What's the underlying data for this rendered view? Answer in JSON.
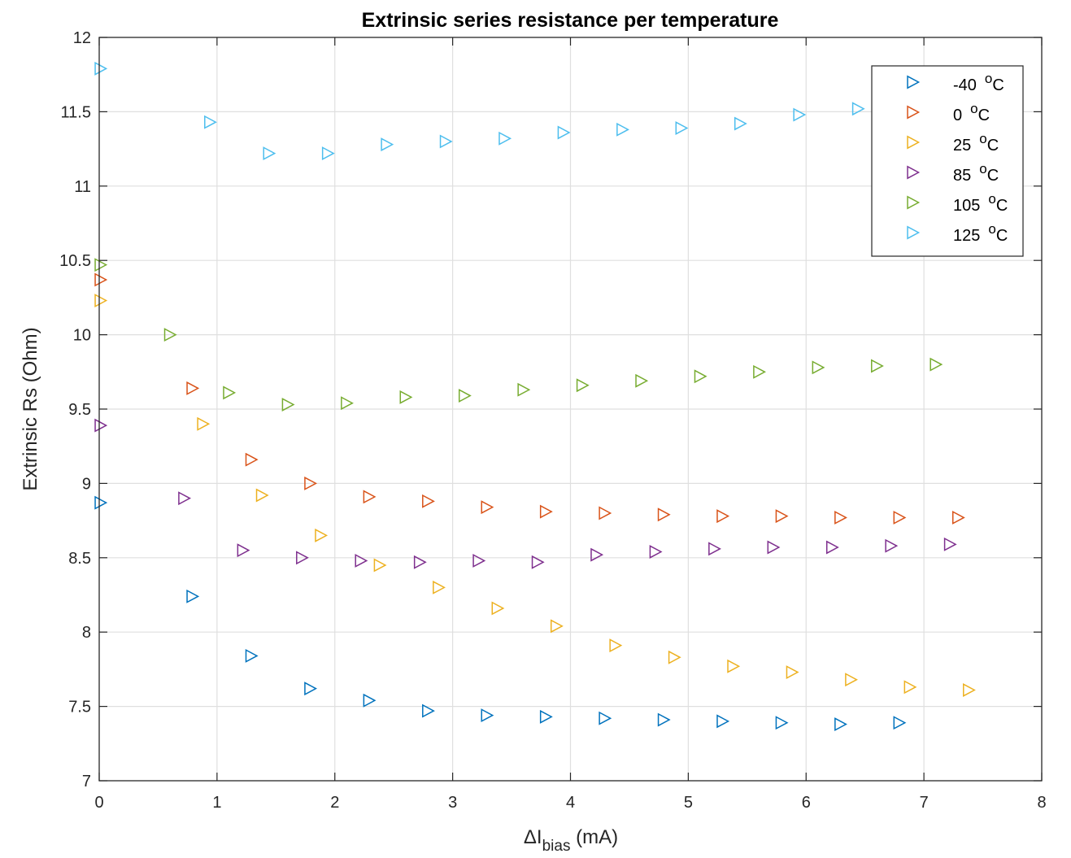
{
  "chart_data": {
    "type": "scatter",
    "title": "Extrinsic series resistance per temperature",
    "xlabel": {
      "prefix": "ΔI",
      "subscript": "bias",
      "suffix": " (mA)"
    },
    "ylabel": "Extrinsic Rs (Ohm)",
    "xlim": [
      0,
      8
    ],
    "ylim": [
      7,
      12
    ],
    "xticks": [
      "0",
      "1",
      "2",
      "3",
      "4",
      "5",
      "6",
      "7",
      "8"
    ],
    "yticks": [
      "7",
      "7.5",
      "8",
      "8.5",
      "9",
      "9.5",
      "10",
      "10.5",
      "11",
      "11.5",
      "12"
    ],
    "grid": true,
    "legend_position": "top-right",
    "marker": "triangle-right",
    "series": [
      {
        "name": "-40",
        "unit": "C",
        "color": "#0072BD",
        "x": [
          0,
          0.78,
          1.28,
          1.78,
          2.28,
          2.78,
          3.28,
          3.78,
          4.28,
          4.78,
          5.28,
          5.78,
          6.28,
          6.78
        ],
        "y": [
          8.87,
          8.24,
          7.84,
          7.62,
          7.54,
          7.47,
          7.44,
          7.43,
          7.42,
          7.41,
          7.4,
          7.39,
          7.38,
          7.39
        ]
      },
      {
        "name": "0",
        "unit": "C",
        "color": "#D95319",
        "x": [
          0,
          0.78,
          1.28,
          1.78,
          2.28,
          2.78,
          3.28,
          3.78,
          4.28,
          4.78,
          5.28,
          5.78,
          6.28,
          6.78,
          7.28
        ],
        "y": [
          10.37,
          9.64,
          9.16,
          9.0,
          8.91,
          8.88,
          8.84,
          8.81,
          8.8,
          8.79,
          8.78,
          8.78,
          8.77,
          8.77,
          8.77
        ]
      },
      {
        "name": "25",
        "unit": "C",
        "color": "#EDB120",
        "x": [
          0,
          0.87,
          1.37,
          1.87,
          2.37,
          2.87,
          3.37,
          3.87,
          4.37,
          4.87,
          5.37,
          5.87,
          6.37,
          6.87,
          7.37
        ],
        "y": [
          10.23,
          9.4,
          8.92,
          8.65,
          8.45,
          8.3,
          8.16,
          8.04,
          7.91,
          7.83,
          7.77,
          7.73,
          7.68,
          7.63,
          7.61
        ]
      },
      {
        "name": "85",
        "unit": "C",
        "color": "#7E2F8E",
        "x": [
          0,
          0.71,
          1.21,
          1.71,
          2.21,
          2.71,
          3.21,
          3.71,
          4.21,
          4.71,
          5.21,
          5.71,
          6.21,
          6.71,
          7.21
        ],
        "y": [
          9.39,
          8.9,
          8.55,
          8.5,
          8.48,
          8.47,
          8.48,
          8.47,
          8.52,
          8.54,
          8.56,
          8.57,
          8.57,
          8.58,
          8.59
        ]
      },
      {
        "name": "105",
        "unit": "C",
        "color": "#77AC30",
        "x": [
          0,
          0.59,
          1.09,
          1.59,
          2.09,
          2.59,
          3.09,
          3.59,
          4.09,
          4.59,
          5.09,
          5.59,
          6.09,
          6.59,
          7.09
        ],
        "y": [
          10.47,
          10.0,
          9.61,
          9.53,
          9.54,
          9.58,
          9.59,
          9.63,
          9.66,
          9.69,
          9.72,
          9.75,
          9.78,
          9.79,
          9.8
        ]
      },
      {
        "name": "125",
        "unit": "C",
        "color": "#4DBEEE",
        "x": [
          0,
          0.93,
          1.43,
          1.93,
          2.43,
          2.93,
          3.43,
          3.93,
          4.43,
          4.93,
          5.43,
          5.93,
          6.43
        ],
        "y": [
          11.79,
          11.43,
          11.22,
          11.22,
          11.28,
          11.3,
          11.32,
          11.36,
          11.38,
          11.39,
          11.42,
          11.48,
          11.52
        ]
      }
    ]
  }
}
